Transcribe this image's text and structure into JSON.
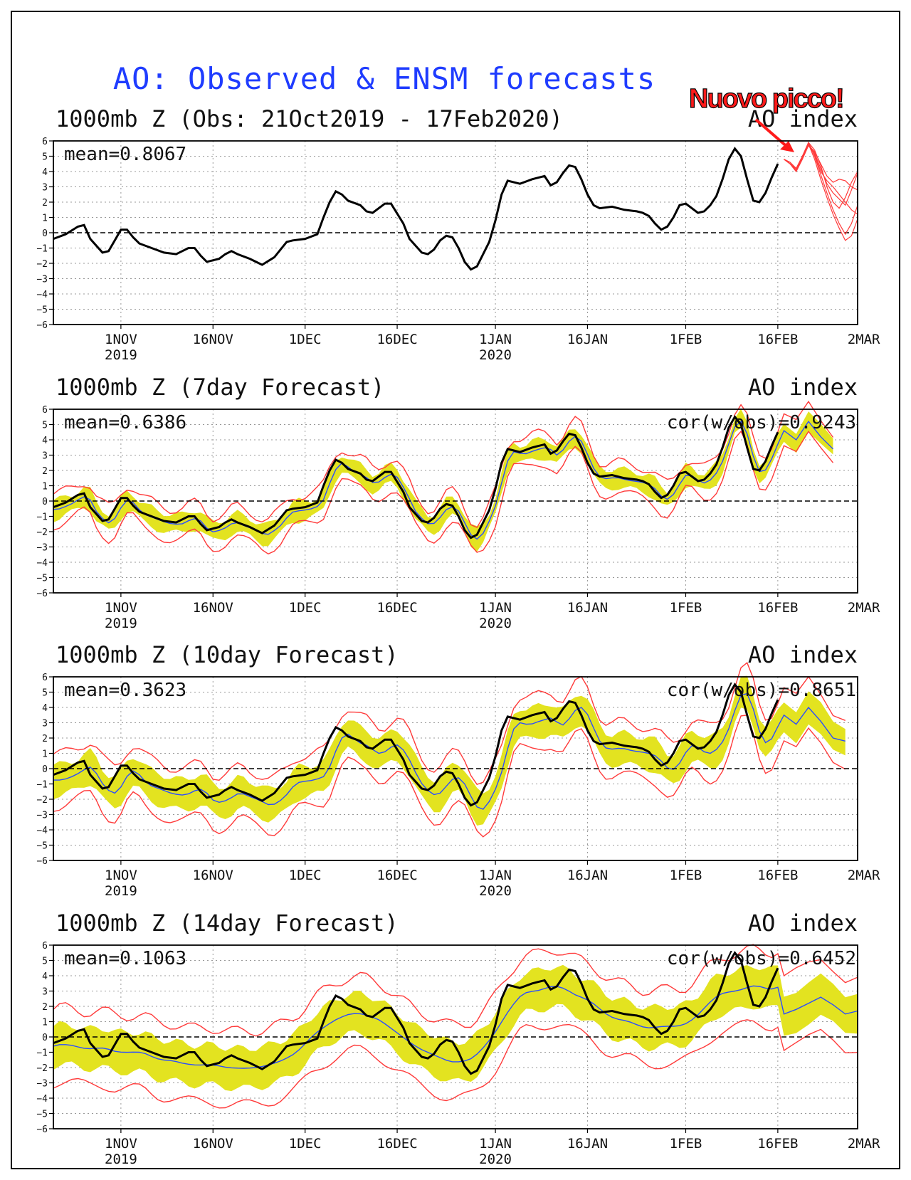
{
  "title": "AO: Observed & ENSM forecasts",
  "annotation": "Nuovo picco!",
  "colors": {
    "title": "#1f3cff",
    "observed": "#000000",
    "ensemble_mean": "#2a4dff",
    "spread": "#e3e320",
    "members": "#ff3a3a",
    "annotation": "#ff1a1a"
  },
  "chart_data": [
    {
      "type": "line",
      "title": "1000mb Z (Obs: 21Oct2019 - 17Feb2020)",
      "index_label": "AO index",
      "mean": "mean=0.8067",
      "ylim": [
        -6,
        6
      ],
      "y_ticks": [
        6,
        5,
        4,
        3,
        2,
        1,
        0,
        -1,
        -2,
        -3,
        -4,
        -5,
        -6
      ],
      "x_range_days": [
        0,
        131
      ],
      "x_ticks": [
        {
          "label": "1NOV",
          "sub": "2019",
          "day": 11
        },
        {
          "label": "16NOV",
          "sub": "",
          "day": 26
        },
        {
          "label": "1DEC",
          "sub": "",
          "day": 41
        },
        {
          "label": "16DEC",
          "sub": "",
          "day": 56
        },
        {
          "label": "1JAN",
          "sub": "2020",
          "day": 72
        },
        {
          "label": "16JAN",
          "sub": "",
          "day": 87
        },
        {
          "label": "1FEB",
          "sub": "",
          "day": 103
        },
        {
          "label": "16FEB",
          "sub": "",
          "day": 118
        },
        {
          "label": "2MAR",
          "sub": "",
          "day": 132
        }
      ],
      "observed": [
        [
          0,
          -0.4
        ],
        [
          2,
          -0.1
        ],
        [
          4,
          0.4
        ],
        [
          5,
          0.5
        ],
        [
          6,
          -0.4
        ],
        [
          8,
          -1.3
        ],
        [
          9,
          -1.2
        ],
        [
          10,
          -0.5
        ],
        [
          11,
          0.2
        ],
        [
          12,
          0.2
        ],
        [
          13,
          -0.3
        ],
        [
          14,
          -0.7
        ],
        [
          16,
          -1.0
        ],
        [
          18,
          -1.3
        ],
        [
          20,
          -1.4
        ],
        [
          22,
          -1.0
        ],
        [
          23,
          -1.0
        ],
        [
          24,
          -1.5
        ],
        [
          25,
          -1.9
        ],
        [
          27,
          -1.7
        ],
        [
          28,
          -1.4
        ],
        [
          29,
          -1.2
        ],
        [
          30,
          -1.4
        ],
        [
          32,
          -1.7
        ],
        [
          33,
          -1.9
        ],
        [
          34,
          -2.1
        ],
        [
          36,
          -1.6
        ],
        [
          38,
          -0.6
        ],
        [
          39,
          -0.5
        ],
        [
          41,
          -0.4
        ],
        [
          43,
          -0.1
        ],
        [
          44,
          1.0
        ],
        [
          45,
          2.0
        ],
        [
          46,
          2.7
        ],
        [
          47,
          2.5
        ],
        [
          48,
          2.1
        ],
        [
          50,
          1.8
        ],
        [
          51,
          1.4
        ],
        [
          52,
          1.3
        ],
        [
          54,
          1.9
        ],
        [
          55,
          1.9
        ],
        [
          57,
          0.6
        ],
        [
          58,
          -0.4
        ],
        [
          60,
          -1.3
        ],
        [
          61,
          -1.4
        ],
        [
          62,
          -1.1
        ],
        [
          63,
          -0.5
        ],
        [
          64,
          -0.2
        ],
        [
          65,
          -0.3
        ],
        [
          66,
          -1.0
        ],
        [
          67,
          -1.9
        ],
        [
          68,
          -2.4
        ],
        [
          69,
          -2.2
        ],
        [
          71,
          -0.6
        ],
        [
          72,
          0.8
        ],
        [
          73,
          2.5
        ],
        [
          74,
          3.4
        ],
        [
          75,
          3.3
        ],
        [
          76,
          3.2
        ],
        [
          78,
          3.5
        ],
        [
          79,
          3.6
        ],
        [
          80,
          3.7
        ],
        [
          81,
          3.1
        ],
        [
          82,
          3.3
        ],
        [
          83,
          3.9
        ],
        [
          84,
          4.4
        ],
        [
          85,
          4.3
        ],
        [
          86,
          3.5
        ],
        [
          87,
          2.5
        ],
        [
          88,
          1.8
        ],
        [
          89,
          1.6
        ],
        [
          91,
          1.7
        ],
        [
          93,
          1.5
        ],
        [
          95,
          1.4
        ],
        [
          96,
          1.3
        ],
        [
          97,
          1.1
        ],
        [
          98,
          0.6
        ],
        [
          99,
          0.2
        ],
        [
          100,
          0.4
        ],
        [
          101,
          1.0
        ],
        [
          102,
          1.8
        ],
        [
          103,
          1.9
        ],
        [
          104,
          1.6
        ],
        [
          105,
          1.3
        ],
        [
          106,
          1.4
        ],
        [
          107,
          1.8
        ],
        [
          108,
          2.4
        ],
        [
          109,
          3.5
        ],
        [
          110,
          4.8
        ],
        [
          111,
          5.5
        ],
        [
          112,
          5.0
        ],
        [
          113,
          3.5
        ],
        [
          114,
          2.1
        ],
        [
          115,
          2.0
        ],
        [
          116,
          2.6
        ],
        [
          117,
          3.6
        ],
        [
          118,
          4.5
        ]
      ],
      "forecast_members": [
        [
          [
            119,
            4.8
          ],
          [
            120,
            4.5
          ],
          [
            121,
            4.0
          ],
          [
            122,
            4.9
          ],
          [
            123,
            5.8
          ],
          [
            124,
            5.2
          ],
          [
            125,
            4.2
          ],
          [
            126,
            3.2
          ],
          [
            127,
            2.6
          ],
          [
            128,
            2.2
          ],
          [
            129,
            1.8
          ],
          [
            130,
            2.8
          ],
          [
            131,
            3.9
          ]
        ],
        [
          [
            119,
            4.8
          ],
          [
            120,
            4.6
          ],
          [
            121,
            4.2
          ],
          [
            122,
            5.0
          ],
          [
            123,
            5.9
          ],
          [
            124,
            5.0
          ],
          [
            125,
            3.8
          ],
          [
            126,
            2.6
          ],
          [
            127,
            1.5
          ],
          [
            128,
            0.6
          ],
          [
            129,
            -0.1
          ],
          [
            130,
            0.6
          ],
          [
            131,
            1.8
          ]
        ],
        [
          [
            119,
            4.8
          ],
          [
            120,
            4.5
          ],
          [
            121,
            4.1
          ],
          [
            122,
            4.9
          ],
          [
            123,
            5.7
          ],
          [
            124,
            5.3
          ],
          [
            125,
            4.5
          ],
          [
            126,
            3.7
          ],
          [
            127,
            3.3
          ],
          [
            128,
            3.5
          ],
          [
            129,
            3.4
          ],
          [
            130,
            3.0
          ],
          [
            131,
            2.8
          ]
        ],
        [
          [
            119,
            4.8
          ],
          [
            120,
            4.6
          ],
          [
            121,
            4.2
          ],
          [
            122,
            5.0
          ],
          [
            123,
            5.8
          ],
          [
            124,
            4.8
          ],
          [
            125,
            3.5
          ],
          [
            126,
            2.3
          ],
          [
            127,
            1.2
          ],
          [
            128,
            0.3
          ],
          [
            129,
            -0.5
          ],
          [
            130,
            -0.2
          ],
          [
            131,
            0.9
          ]
        ],
        [
          [
            119,
            4.8
          ],
          [
            120,
            4.5
          ],
          [
            121,
            4.0
          ],
          [
            122,
            4.8
          ],
          [
            123,
            5.7
          ],
          [
            124,
            5.1
          ],
          [
            125,
            4.0
          ],
          [
            126,
            3.4
          ],
          [
            127,
            3.0
          ],
          [
            128,
            2.5
          ],
          [
            129,
            2.0
          ],
          [
            130,
            1.5
          ],
          [
            131,
            1.2
          ]
        ],
        [
          [
            119,
            4.8
          ],
          [
            120,
            4.6
          ],
          [
            121,
            4.1
          ],
          [
            122,
            5.0
          ],
          [
            123,
            5.9
          ],
          [
            124,
            5.4
          ],
          [
            125,
            4.4
          ],
          [
            126,
            3.0
          ],
          [
            127,
            2.0
          ],
          [
            128,
            1.6
          ],
          [
            129,
            2.3
          ],
          [
            130,
            3.3
          ],
          [
            131,
            4.0
          ]
        ]
      ]
    },
    {
      "type": "area",
      "title": "1000mb Z (7day Forecast)",
      "index_label": "AO index",
      "mean": "mean=0.6386",
      "cor": "cor(w/obs)=0.9243",
      "lag_days": 0.7,
      "mean_offset": -0.15,
      "band_half": 0.6,
      "outer_half": 1.0,
      "end_values": [
        [
          119,
          4.6
        ],
        [
          121,
          4.0
        ],
        [
          123,
          5.2
        ],
        [
          125,
          4.2
        ],
        [
          127,
          3.4
        ]
      ]
    },
    {
      "type": "area",
      "title": "1000mb Z (10day Forecast)",
      "index_label": "AO index",
      "mean": "mean=0.3623",
      "cor": "cor(w/obs)=0.8651",
      "lag_days": 1.5,
      "mean_offset": -0.35,
      "band_half": 1.0,
      "outer_half": 1.7,
      "end_values": [
        [
          119,
          3.5
        ],
        [
          121,
          2.9
        ],
        [
          123,
          4.0
        ],
        [
          125,
          3.1
        ],
        [
          127,
          2.0
        ],
        [
          129,
          1.8
        ]
      ]
    },
    {
      "type": "area",
      "title": "1000mb Z (14day Forecast)",
      "index_label": "AO index",
      "mean": "mean=0.1063",
      "cor": "cor(w/obs)=0.6452",
      "smooth_window": 4,
      "mean_offset": -0.4,
      "band_half": 1.3,
      "outer_half": 2.4,
      "end_values": [
        [
          119,
          1.5
        ],
        [
          121,
          1.8
        ],
        [
          123,
          2.2
        ],
        [
          125,
          2.6
        ],
        [
          127,
          2.1
        ],
        [
          129,
          1.5
        ],
        [
          131,
          1.7
        ]
      ]
    }
  ]
}
